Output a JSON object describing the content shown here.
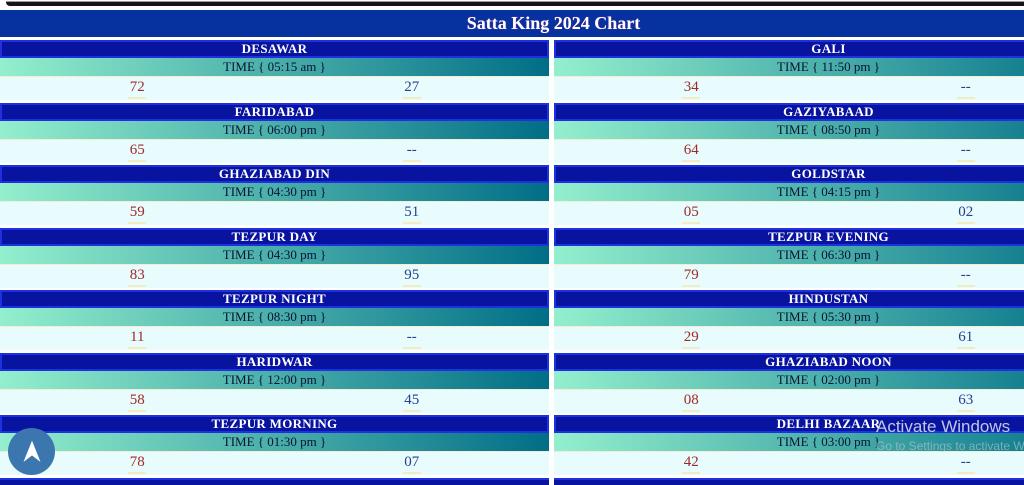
{
  "title": "Satta King 2024 Chart",
  "games": [
    {
      "name": "DESAWAR",
      "time": "TIME { 05:15 am }",
      "left_value": "72",
      "right_value": "27"
    },
    {
      "name": "GALI",
      "time": "TIME { 11:50 pm }",
      "left_value": "34",
      "right_value": "--"
    },
    {
      "name": "FARIDABAD",
      "time": "TIME { 06:00 pm }",
      "left_value": "65",
      "right_value": "--"
    },
    {
      "name": "GAZIYABAAD",
      "time": "TIME { 08:50 pm }",
      "left_value": "64",
      "right_value": "--"
    },
    {
      "name": "GHAZIABAD DIN",
      "time": "TIME { 04:30 pm }",
      "left_value": "59",
      "right_value": "51"
    },
    {
      "name": "GOLDSTAR",
      "time": "TIME { 04:15 pm }",
      "left_value": "05",
      "right_value": "02"
    },
    {
      "name": "TEZPUR DAY",
      "time": "TIME { 04:30 pm }",
      "left_value": "83",
      "right_value": "95"
    },
    {
      "name": "TEZPUR EVENING",
      "time": "TIME { 06:30 pm }",
      "left_value": "79",
      "right_value": "--"
    },
    {
      "name": "TEZPUR NIGHT",
      "time": "TIME { 08:30 pm }",
      "left_value": "11",
      "right_value": "--"
    },
    {
      "name": "HINDUSTAN",
      "time": "TIME { 05:30 pm }",
      "left_value": "29",
      "right_value": "61"
    },
    {
      "name": "HARIDWAR",
      "time": "TIME { 12:00 pm }",
      "left_value": "58",
      "right_value": "45"
    },
    {
      "name": "GHAZIABAD NOON",
      "time": "TIME { 02:00 pm }",
      "left_value": "08",
      "right_value": "63"
    },
    {
      "name": "TEZPUR MORNING",
      "time": "TIME { 01:30 pm }",
      "left_value": "78",
      "right_value": "07"
    },
    {
      "name": "DELHI BAZAAR",
      "time": "TIME { 03:00 pm }",
      "left_value": "42",
      "right_value": "--"
    }
  ],
  "watermark": {
    "line1": "Activate Windows",
    "line2": "Go to Settings to activate W"
  },
  "colors": {
    "title_bar": "#05329e",
    "card_header": "#0813a0",
    "card_header_border": "#1e31e0",
    "time_gradient_start": "#93efcd",
    "time_gradient_end": "#016e87",
    "numbers_row_bg": "#e8fbfd",
    "left_number": "#a02a28",
    "right_number": "#27418c",
    "number_underline": "#f2ecc2",
    "scroll_button": "#3b77ae"
  }
}
